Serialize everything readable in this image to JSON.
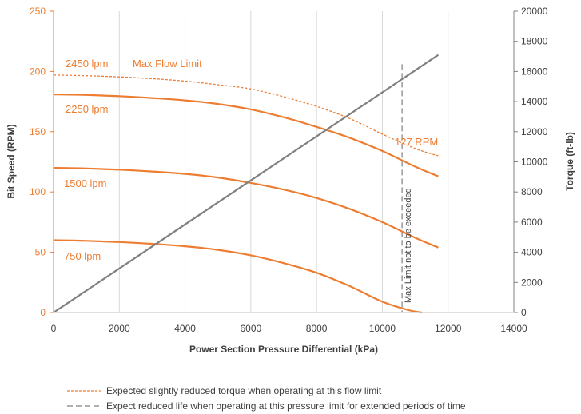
{
  "colors": {
    "flow": "#ED7D31",
    "torque": "#808080",
    "limit": "#808080",
    "axis_left": "#ED7D31",
    "text": "#404040",
    "grid": "#D9D9D9"
  },
  "chart_data": {
    "type": "line",
    "xlabel": "Power Section Pressure Differential (kPa)",
    "ylabel": "Bit Speed (RPM)",
    "y2label": "Torque (ft-lb)",
    "xlim": [
      0,
      14000
    ],
    "ylim": [
      0,
      250
    ],
    "y2lim": [
      0,
      20000
    ],
    "xticks": [
      "0",
      "2000",
      "4000",
      "6000",
      "8000",
      "10000",
      "12000",
      "14000"
    ],
    "yticks": [
      "0",
      "50",
      "100",
      "150",
      "200",
      "250"
    ],
    "y2ticks": [
      "0",
      "2000",
      "4000",
      "6000",
      "8000",
      "10000",
      "12000",
      "14000",
      "16000",
      "18000",
      "20000"
    ],
    "grid": "vertical",
    "series": [
      {
        "name": "2450 lpm",
        "style": "dashed",
        "axis": "left",
        "x": [
          0,
          1000,
          2000,
          3000,
          4000,
          5000,
          6000,
          7000,
          8000,
          9000,
          10000,
          11000,
          11700
        ],
        "y": [
          197,
          196.5,
          195.5,
          194,
          192,
          189,
          185.5,
          179,
          171,
          161,
          148,
          136,
          130
        ]
      },
      {
        "name": "2250 lpm",
        "style": "solid",
        "axis": "left",
        "x": [
          0,
          1000,
          2000,
          3000,
          4000,
          5000,
          6000,
          7000,
          8000,
          9000,
          10000,
          11000,
          11700
        ],
        "y": [
          181,
          180.5,
          179.5,
          178,
          176,
          173,
          168.5,
          162,
          154,
          145,
          134,
          121,
          113
        ]
      },
      {
        "name": "1500 lpm",
        "style": "solid",
        "axis": "left",
        "x": [
          0,
          1000,
          2000,
          3000,
          4000,
          5000,
          6000,
          7000,
          8000,
          9000,
          10000,
          11000,
          11700
        ],
        "y": [
          120,
          119.5,
          118.5,
          117,
          115,
          112,
          107.5,
          102,
          95,
          86,
          75,
          62,
          54
        ]
      },
      {
        "name": "750 lpm",
        "style": "solid",
        "axis": "left",
        "x": [
          0,
          1000,
          2000,
          3000,
          4000,
          5000,
          6000,
          7000,
          8000,
          9000,
          10000,
          10800,
          11200
        ],
        "y": [
          60,
          59.5,
          58.5,
          57,
          55,
          52,
          47.5,
          41,
          33,
          22,
          9,
          2,
          0
        ]
      },
      {
        "name": "Torque",
        "style": "solid",
        "axis": "right",
        "x": [
          0,
          11700
        ],
        "y": [
          0,
          17100
        ]
      }
    ],
    "max_pressure_line": {
      "x": 10600,
      "y_top": 206,
      "label": "Max Limit not to be exceeded"
    },
    "annotations": {
      "lpm_2450": "2450 lpm",
      "max_flow": "Max Flow Limit",
      "lpm_2250": "2250 lpm",
      "lpm_1500": "1500 lpm",
      "lpm_750": "750 lpm",
      "rpm_127": "127 RPM"
    },
    "legend": [
      {
        "style": "dashed-orange",
        "text": "Expected slightly reduced torque when operating at this flow limit"
      },
      {
        "style": "dashed-gray",
        "text": "Expect reduced life when operating at this pressure limit for extended periods of time"
      }
    ]
  }
}
